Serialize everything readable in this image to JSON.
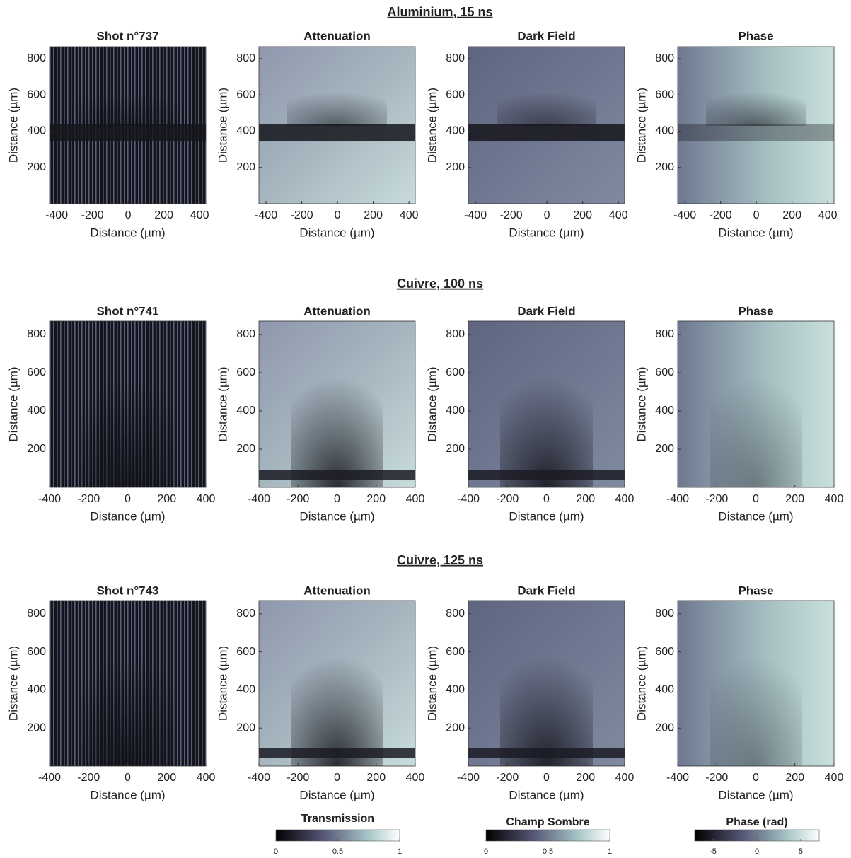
{
  "rows": [
    {
      "title": "Aluminium, 15 ns",
      "panels": [
        {
          "title": "Shot n°737",
          "xlabel": "Distance (µm)",
          "ylabel": "Distance (µm)",
          "xlim": [
            -440,
            435
          ],
          "ylim": [
            0,
            866
          ],
          "xticks": [
            -400,
            -200,
            0,
            200,
            400
          ],
          "yticks": [
            200,
            400,
            600,
            800
          ]
        },
        {
          "title": "Attenuation",
          "xlabel": "Distance (µm)",
          "ylabel": "Distance (µm)",
          "xlim": [
            -440,
            435
          ],
          "ylim": [
            0,
            866
          ],
          "xticks": [
            -400,
            -200,
            0,
            200,
            400
          ],
          "yticks": [
            200,
            400,
            600,
            800
          ]
        },
        {
          "title": "Dark Field",
          "xlabel": "Distance (µm)",
          "ylabel": "Distance (µm)",
          "xlim": [
            -440,
            435
          ],
          "ylim": [
            0,
            866
          ],
          "xticks": [
            -400,
            -200,
            0,
            200,
            400
          ],
          "yticks": [
            200,
            400,
            600,
            800
          ]
        },
        {
          "title": "Phase",
          "xlabel": "Distance (µm)",
          "ylabel": "Distance (µm)",
          "xlim": [
            -440,
            435
          ],
          "ylim": [
            0,
            866
          ],
          "xticks": [
            -400,
            -200,
            0,
            200,
            400
          ],
          "yticks": [
            200,
            400,
            600,
            800
          ]
        }
      ]
    },
    {
      "title": "Cuivre, 100 ns",
      "panels": [
        {
          "title": "Shot n°741",
          "xlabel": "Distance (µm)",
          "ylabel": "Distance (µm)",
          "xlim": [
            -400,
            400
          ],
          "ylim": [
            0,
            870
          ],
          "xticks": [
            -400,
            -200,
            0,
            200,
            400
          ],
          "yticks": [
            200,
            400,
            600,
            800
          ]
        },
        {
          "title": "Attenuation",
          "xlabel": "Distance (µm)",
          "ylabel": "Distance (µm)",
          "xlim": [
            -400,
            400
          ],
          "ylim": [
            0,
            870
          ],
          "xticks": [
            -400,
            -200,
            0,
            200,
            400
          ],
          "yticks": [
            200,
            400,
            600,
            800
          ]
        },
        {
          "title": "Dark Field",
          "xlabel": "Distance (µm)",
          "ylabel": "Distance (µm)",
          "xlim": [
            -400,
            400
          ],
          "ylim": [
            0,
            870
          ],
          "xticks": [
            -400,
            -200,
            0,
            200,
            400
          ],
          "yticks": [
            200,
            400,
            600,
            800
          ]
        },
        {
          "title": "Phase",
          "xlabel": "Distance (µm)",
          "ylabel": "Distance (µm)",
          "xlim": [
            -400,
            400
          ],
          "ylim": [
            0,
            870
          ],
          "xticks": [
            -400,
            -200,
            0,
            200,
            400
          ],
          "yticks": [
            200,
            400,
            600,
            800
          ]
        }
      ]
    },
    {
      "title": "Cuivre, 125 ns",
      "panels": [
        {
          "title": "Shot n°743",
          "xlabel": "Distance (µm)",
          "ylabel": "Distance (µm)",
          "xlim": [
            -400,
            400
          ],
          "ylim": [
            0,
            870
          ],
          "xticks": [
            -400,
            -200,
            0,
            200,
            400
          ],
          "yticks": [
            200,
            400,
            600,
            800
          ]
        },
        {
          "title": "Attenuation",
          "xlabel": "Distance (µm)",
          "ylabel": "Distance (µm)",
          "xlim": [
            -400,
            400
          ],
          "ylim": [
            0,
            870
          ],
          "xticks": [
            -400,
            -200,
            0,
            200,
            400
          ],
          "yticks": [
            200,
            400,
            600,
            800
          ]
        },
        {
          "title": "Dark Field",
          "xlabel": "Distance (µm)",
          "ylabel": "Distance (µm)",
          "xlim": [
            -400,
            400
          ],
          "ylim": [
            0,
            870
          ],
          "xticks": [
            -400,
            -200,
            0,
            200,
            400
          ],
          "yticks": [
            200,
            400,
            600,
            800
          ]
        },
        {
          "title": "Phase",
          "xlabel": "Distance (µm)",
          "ylabel": "Distance (µm)",
          "xlim": [
            -400,
            400
          ],
          "ylim": [
            0,
            870
          ],
          "xticks": [
            -400,
            -200,
            0,
            200,
            400
          ],
          "yticks": [
            200,
            400,
            600,
            800
          ]
        }
      ]
    }
  ],
  "colorbars": [
    {
      "label": "Transmission",
      "lim": [
        0,
        1
      ],
      "ticks": [
        0,
        0.5,
        1
      ]
    },
    {
      "label": "Champ Sombre",
      "lim": [
        0,
        1
      ],
      "ticks": [
        0,
        0.5,
        1
      ]
    },
    {
      "label": "Phase (rad)",
      "lim": [
        -7.1,
        7.1
      ],
      "ticks": [
        -5,
        0,
        5
      ]
    }
  ]
}
